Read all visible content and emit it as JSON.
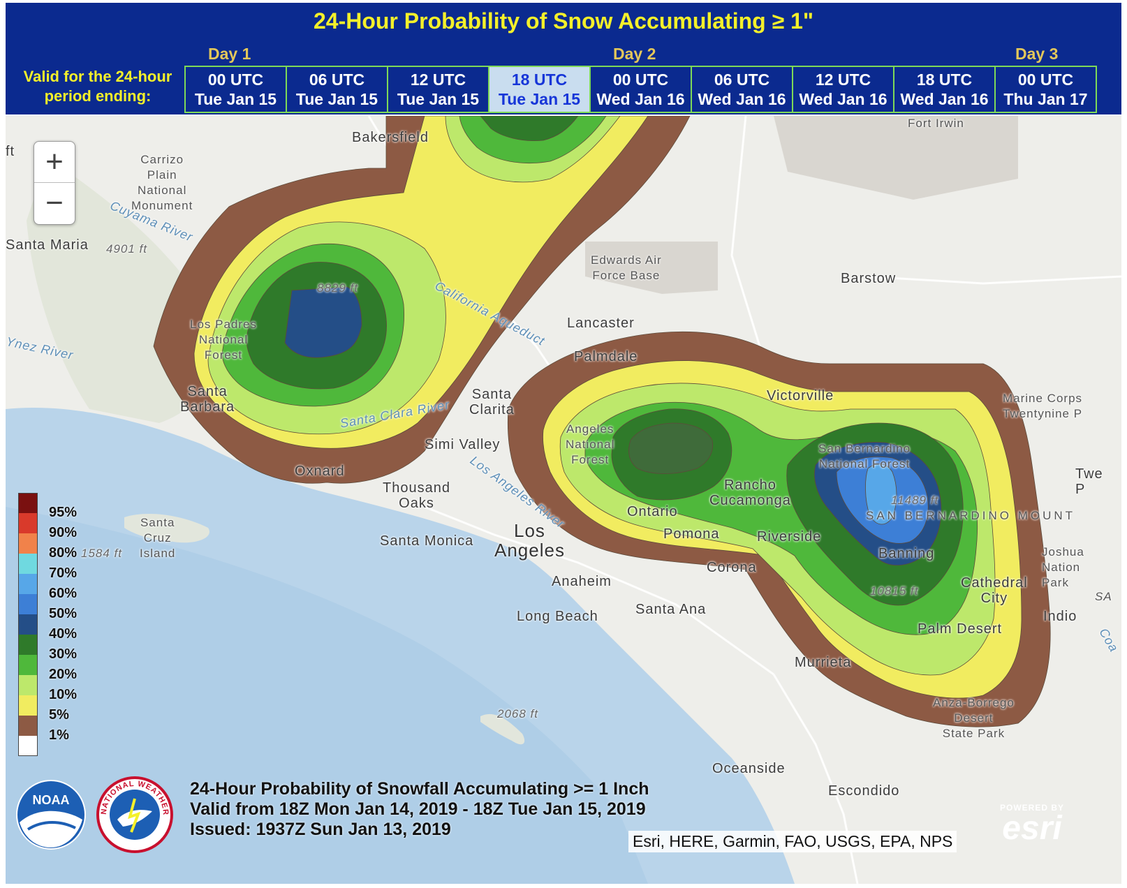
{
  "header": {
    "title": "24-Hour Probability of Snow Accumulating ≥ 1\"",
    "days": [
      "Day 1",
      "Day 2",
      "Day 3"
    ],
    "valid_label_line1": "Valid for the 24-hour",
    "valid_label_line2": "period ending:",
    "tabs": [
      {
        "time": "00 UTC",
        "date": "Tue Jan 15"
      },
      {
        "time": "06 UTC",
        "date": "Tue Jan 15"
      },
      {
        "time": "12 UTC",
        "date": "Tue Jan 15"
      },
      {
        "time": "18 UTC",
        "date": "Tue Jan 15"
      },
      {
        "time": "00 UTC",
        "date": "Wed Jan 16"
      },
      {
        "time": "06 UTC",
        "date": "Wed Jan 16"
      },
      {
        "time": "12 UTC",
        "date": "Wed Jan 16"
      },
      {
        "time": "18 UTC",
        "date": "Wed Jan 16"
      },
      {
        "time": "00 UTC",
        "date": "Thu Jan 17"
      }
    ],
    "active_tab_index": 3
  },
  "map": {
    "zoom_in_label": "+",
    "zoom_out_label": "−",
    "places": {
      "bakersfield": "Bakersfield",
      "fort_irwin": "Fort Irwin",
      "carrizo": [
        "Carrizo",
        "Plain",
        "National",
        "Monument"
      ],
      "cuyama_river": "Cuyama River",
      "santa_maria": "Santa Maria",
      "elev_4901": "4901 ft",
      "elev_8829": "8829 ft",
      "edwards": [
        "Edwards Air",
        "Force Base"
      ],
      "barstow": "Barstow",
      "lancaster": "Lancaster",
      "california_aqueduct": "California Aqueduct",
      "los_padres": [
        "Los Padres",
        "National",
        "Forest"
      ],
      "ynez_river": "Ynez River",
      "palmdale": "Palmdale",
      "santa_barbara": [
        "Santa",
        "Barbara"
      ],
      "santa_clarita": [
        "Santa",
        "Clarita"
      ],
      "santa_clara_river": "Santa Clara River",
      "victorville": "Victorville",
      "marine_corps": [
        "Marine Corps",
        "Twentynine P"
      ],
      "simi_valley": "Simi Valley",
      "angeles_nf": [
        "Angeles",
        "National",
        "Forest"
      ],
      "san_bernardino_nf": [
        "San Bernardino",
        "National Forest"
      ],
      "oxnard": "Oxnard",
      "thousand_oaks": [
        "Thousand",
        "Oaks"
      ],
      "los_angeles_river": "Los Angeles River",
      "rancho": [
        "Rancho",
        "Cucamonga"
      ],
      "twe": [
        "Twe",
        "P"
      ],
      "santa_cruz_island": [
        "Santa",
        "Cruz",
        "Island"
      ],
      "ontario": "Ontario",
      "elev_11489": "11489 ft",
      "san_bernardino_mts": "SAN BERNARDINO MOUNT",
      "elev_1584": "1584 ft",
      "santa_monica": "Santa Monica",
      "los_angeles": [
        "Los",
        "Angeles"
      ],
      "pomona": "Pomona",
      "riverside": "Riverside",
      "banning": "Banning",
      "joshua": [
        "Joshua",
        "Nation",
        "Park"
      ],
      "corona": "Corona",
      "anaheim": "Anaheim",
      "cathedral_city": [
        "Cathedral",
        "City"
      ],
      "elev_10815": "10815 ft",
      "sa": "SA",
      "santa_ana": "Santa Ana",
      "long_beach": "Long Beach",
      "indio": "Indio",
      "coa": "Coa",
      "palm_desert": "Palm Desert",
      "murrieta": "Murrieta",
      "anza": [
        "Anza-Borrego",
        "Desert",
        "State Park"
      ],
      "elev_2068": "2068 ft",
      "oceanside": "Oceanside",
      "escondido": "Escondido",
      "ft_left": "ft"
    }
  },
  "legend": {
    "items": [
      {
        "label": "95%",
        "color": "#7a1010"
      },
      {
        "label": "90%",
        "color": "#d93a2b"
      },
      {
        "label": "80%",
        "color": "#f1824a"
      },
      {
        "label": "70%",
        "color": "#6fd9e0"
      },
      {
        "label": "60%",
        "color": "#57a7e8"
      },
      {
        "label": "50%",
        "color": "#3d7fd6"
      },
      {
        "label": "40%",
        "color": "#244e87"
      },
      {
        "label": "30%",
        "color": "#2f7a2a"
      },
      {
        "label": "20%",
        "color": "#4fb83b"
      },
      {
        "label": "10%",
        "color": "#bde86b"
      },
      {
        "label": "5%",
        "color": "#f1ec60"
      },
      {
        "label": "1%",
        "color": "#8d5a44"
      },
      {
        "label": "",
        "color": "#ffffff"
      }
    ]
  },
  "caption": {
    "line1": "24-Hour Probability of Snowfall Accumulating >= 1 Inch",
    "line2": "Valid from 18Z Mon Jan 14, 2019 - 18Z Tue Jan 15, 2019",
    "line3": "Issued: 1937Z Sun Jan 13, 2019"
  },
  "attribution": "Esri, HERE, Garmin, FAO, USGS, EPA, NPS",
  "esri": {
    "powered_by": "POWERED BY",
    "name": "esri"
  },
  "logos": {
    "noaa": "NOAA",
    "nws": "NATIONAL WEATHER SERVICE"
  },
  "colors": {
    "header_bg": "#0b2a8f",
    "title_yellow": "#f4f02a",
    "tab_border": "#7ed957",
    "active_tab_bg": "#c9ddef",
    "ocean": "#b8d4ea",
    "land": "#eeeeea"
  }
}
